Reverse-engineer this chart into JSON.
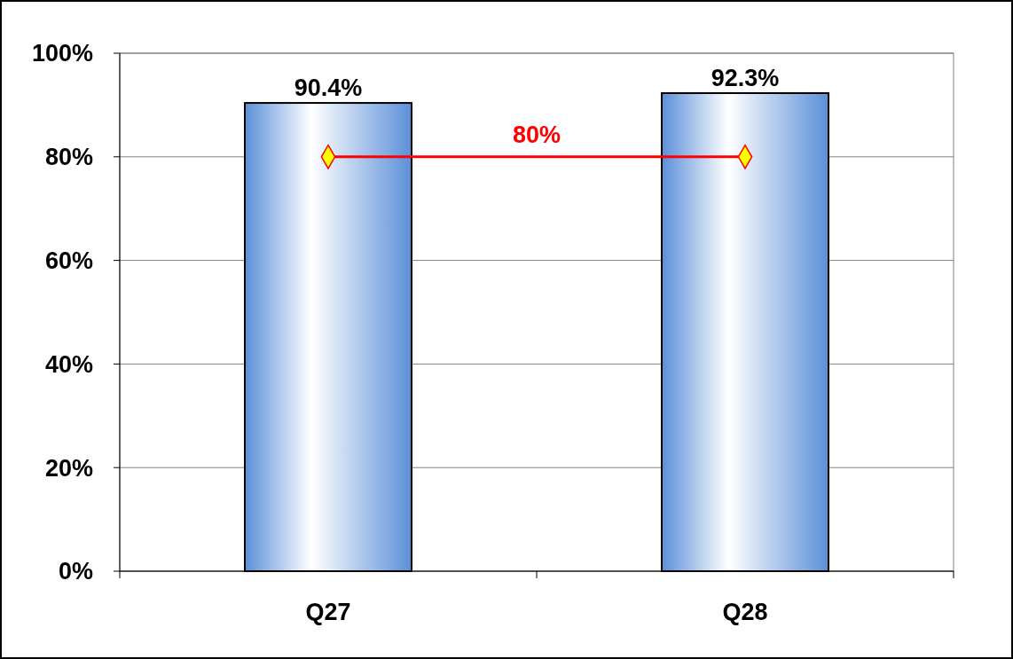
{
  "chart_data": {
    "type": "bar",
    "categories": [
      "Q27",
      "Q28"
    ],
    "series": [
      {
        "color": "#5b8fd9",
        "values": [
          90.4,
          92.3
        ],
        "value_labels": [
          "90.4%",
          "92.3%"
        ]
      },
      {
        "type": "line",
        "name": "80%",
        "color": "#ff0000",
        "values": [
          80,
          80
        ],
        "marker": "diamond"
      }
    ],
    "ylim": [
      0,
      100
    ],
    "yticks": [
      {
        "value": 0,
        "label": "0%"
      },
      {
        "value": 20,
        "label": "20%"
      },
      {
        "value": 40,
        "label": "40%"
      },
      {
        "value": 60,
        "label": "60%"
      },
      {
        "value": 80,
        "label": "80%"
      },
      {
        "value": 100,
        "label": "100%"
      }
    ],
    "grid": "y"
  }
}
